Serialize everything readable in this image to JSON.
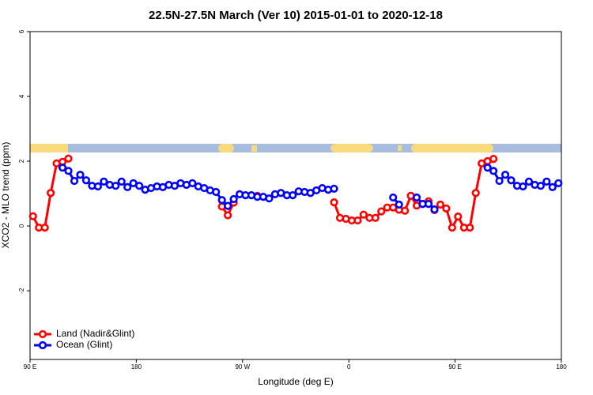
{
  "chart_data": {
    "type": "line",
    "title": "22.5N-27.5N March (Ver 10)   2015-01-01 to 2020-12-18",
    "x_label": "Longitude (deg E)",
    "y_label": "XCO2 - MLO trend (ppm)",
    "x": [
      92.5,
      97.5,
      102.5,
      107.5,
      112.5,
      117.5,
      122.5,
      127.5,
      132.5,
      137.5,
      142.5,
      147.5,
      152.5,
      157.5,
      162.5,
      167.5,
      172.5,
      177.5,
      182.5,
      187.5,
      192.5,
      197.5,
      202.5,
      207.5,
      212.5,
      217.5,
      222.5,
      227.5,
      232.5,
      237.5,
      242.5,
      247.5,
      252.5,
      257.5,
      262.5,
      267.5,
      272.5,
      277.5,
      282.5,
      287.5,
      292.5,
      297.5,
      302.5,
      307.5,
      312.5,
      317.5,
      322.5,
      327.5,
      332.5,
      337.5,
      342.5,
      347.5,
      352.5,
      357.5,
      362.5,
      367.5,
      372.5,
      377.5,
      382.5,
      387.5,
      392.5,
      397.5,
      402.5,
      407.5,
      412.5,
      417.5,
      422.5,
      427.5,
      432.5,
      437.5,
      442.5,
      447.5,
      452.5,
      457.5,
      462.5,
      467.5,
      472.5,
      477.5,
      482.5,
      487.5,
      492.5,
      497.5,
      502.5,
      507.5,
      512.5,
      517.5,
      522.5,
      527.5,
      532.5,
      537.5
    ],
    "series": [
      {
        "name": "Land (Nadir&Glint)",
        "color": "#ff0000",
        "values": [
          0.3,
          -0.05,
          -0.05,
          1.02,
          1.93,
          1.98,
          2.08,
          null,
          null,
          null,
          null,
          null,
          null,
          null,
          null,
          null,
          null,
          null,
          null,
          null,
          null,
          null,
          null,
          null,
          null,
          null,
          null,
          null,
          null,
          null,
          null,
          null,
          0.6,
          0.33,
          0.72,
          null,
          null,
          null,
          0.93,
          null,
          null,
          null,
          null,
          null,
          null,
          null,
          null,
          null,
          null,
          null,
          null,
          0.73,
          0.25,
          0.22,
          0.17,
          0.17,
          0.35,
          0.25,
          0.25,
          0.45,
          0.57,
          0.57,
          0.5,
          0.47,
          0.93,
          0.63,
          0.68,
          0.76,
          0.49,
          0.66,
          0.54,
          -0.05,
          0.29,
          -0.05,
          -0.05,
          1.02,
          1.93,
          2.0,
          2.07,
          null,
          null,
          null,
          null,
          null,
          null,
          null,
          null,
          null,
          null,
          null
        ]
      },
      {
        "name": "Ocean (Glint)",
        "color": "#0000ff",
        "values": [
          null,
          null,
          null,
          null,
          null,
          1.8,
          1.7,
          1.39,
          1.58,
          1.41,
          1.24,
          1.22,
          1.37,
          1.27,
          1.24,
          1.37,
          1.2,
          1.32,
          1.24,
          1.12,
          1.17,
          1.22,
          1.2,
          1.27,
          1.24,
          1.32,
          1.27,
          1.32,
          1.22,
          1.17,
          1.1,
          1.05,
          0.8,
          0.62,
          0.83,
          0.98,
          0.95,
          0.95,
          0.9,
          0.9,
          0.85,
          0.98,
          1.02,
          0.95,
          0.95,
          1.07,
          1.05,
          1.02,
          1.1,
          1.17,
          1.12,
          1.15,
          null,
          null,
          null,
          null,
          null,
          null,
          null,
          null,
          null,
          0.88,
          0.66,
          null,
          null,
          0.88,
          0.68,
          0.68,
          0.51,
          null,
          null,
          null,
          null,
          null,
          null,
          null,
          null,
          1.8,
          1.7,
          1.39,
          1.58,
          1.41,
          1.24,
          1.22,
          1.37,
          1.27,
          1.24,
          1.37,
          1.2,
          1.32
        ]
      }
    ],
    "xlim": [
      90,
      540
    ],
    "xticks": [
      {
        "value": 90,
        "label": "90 E"
      },
      180,
      {
        "value": 270,
        "label": "90 W"
      },
      {
        "value": 360,
        "label": "0"
      },
      {
        "value": 450,
        "label": "90 E"
      },
      {
        "value": 540,
        "label": "180"
      }
    ],
    "ylim": [
      -4.12,
      6
    ],
    "yticks": [
      -2,
      0,
      2,
      4,
      6
    ],
    "legend": "bottom-left"
  }
}
